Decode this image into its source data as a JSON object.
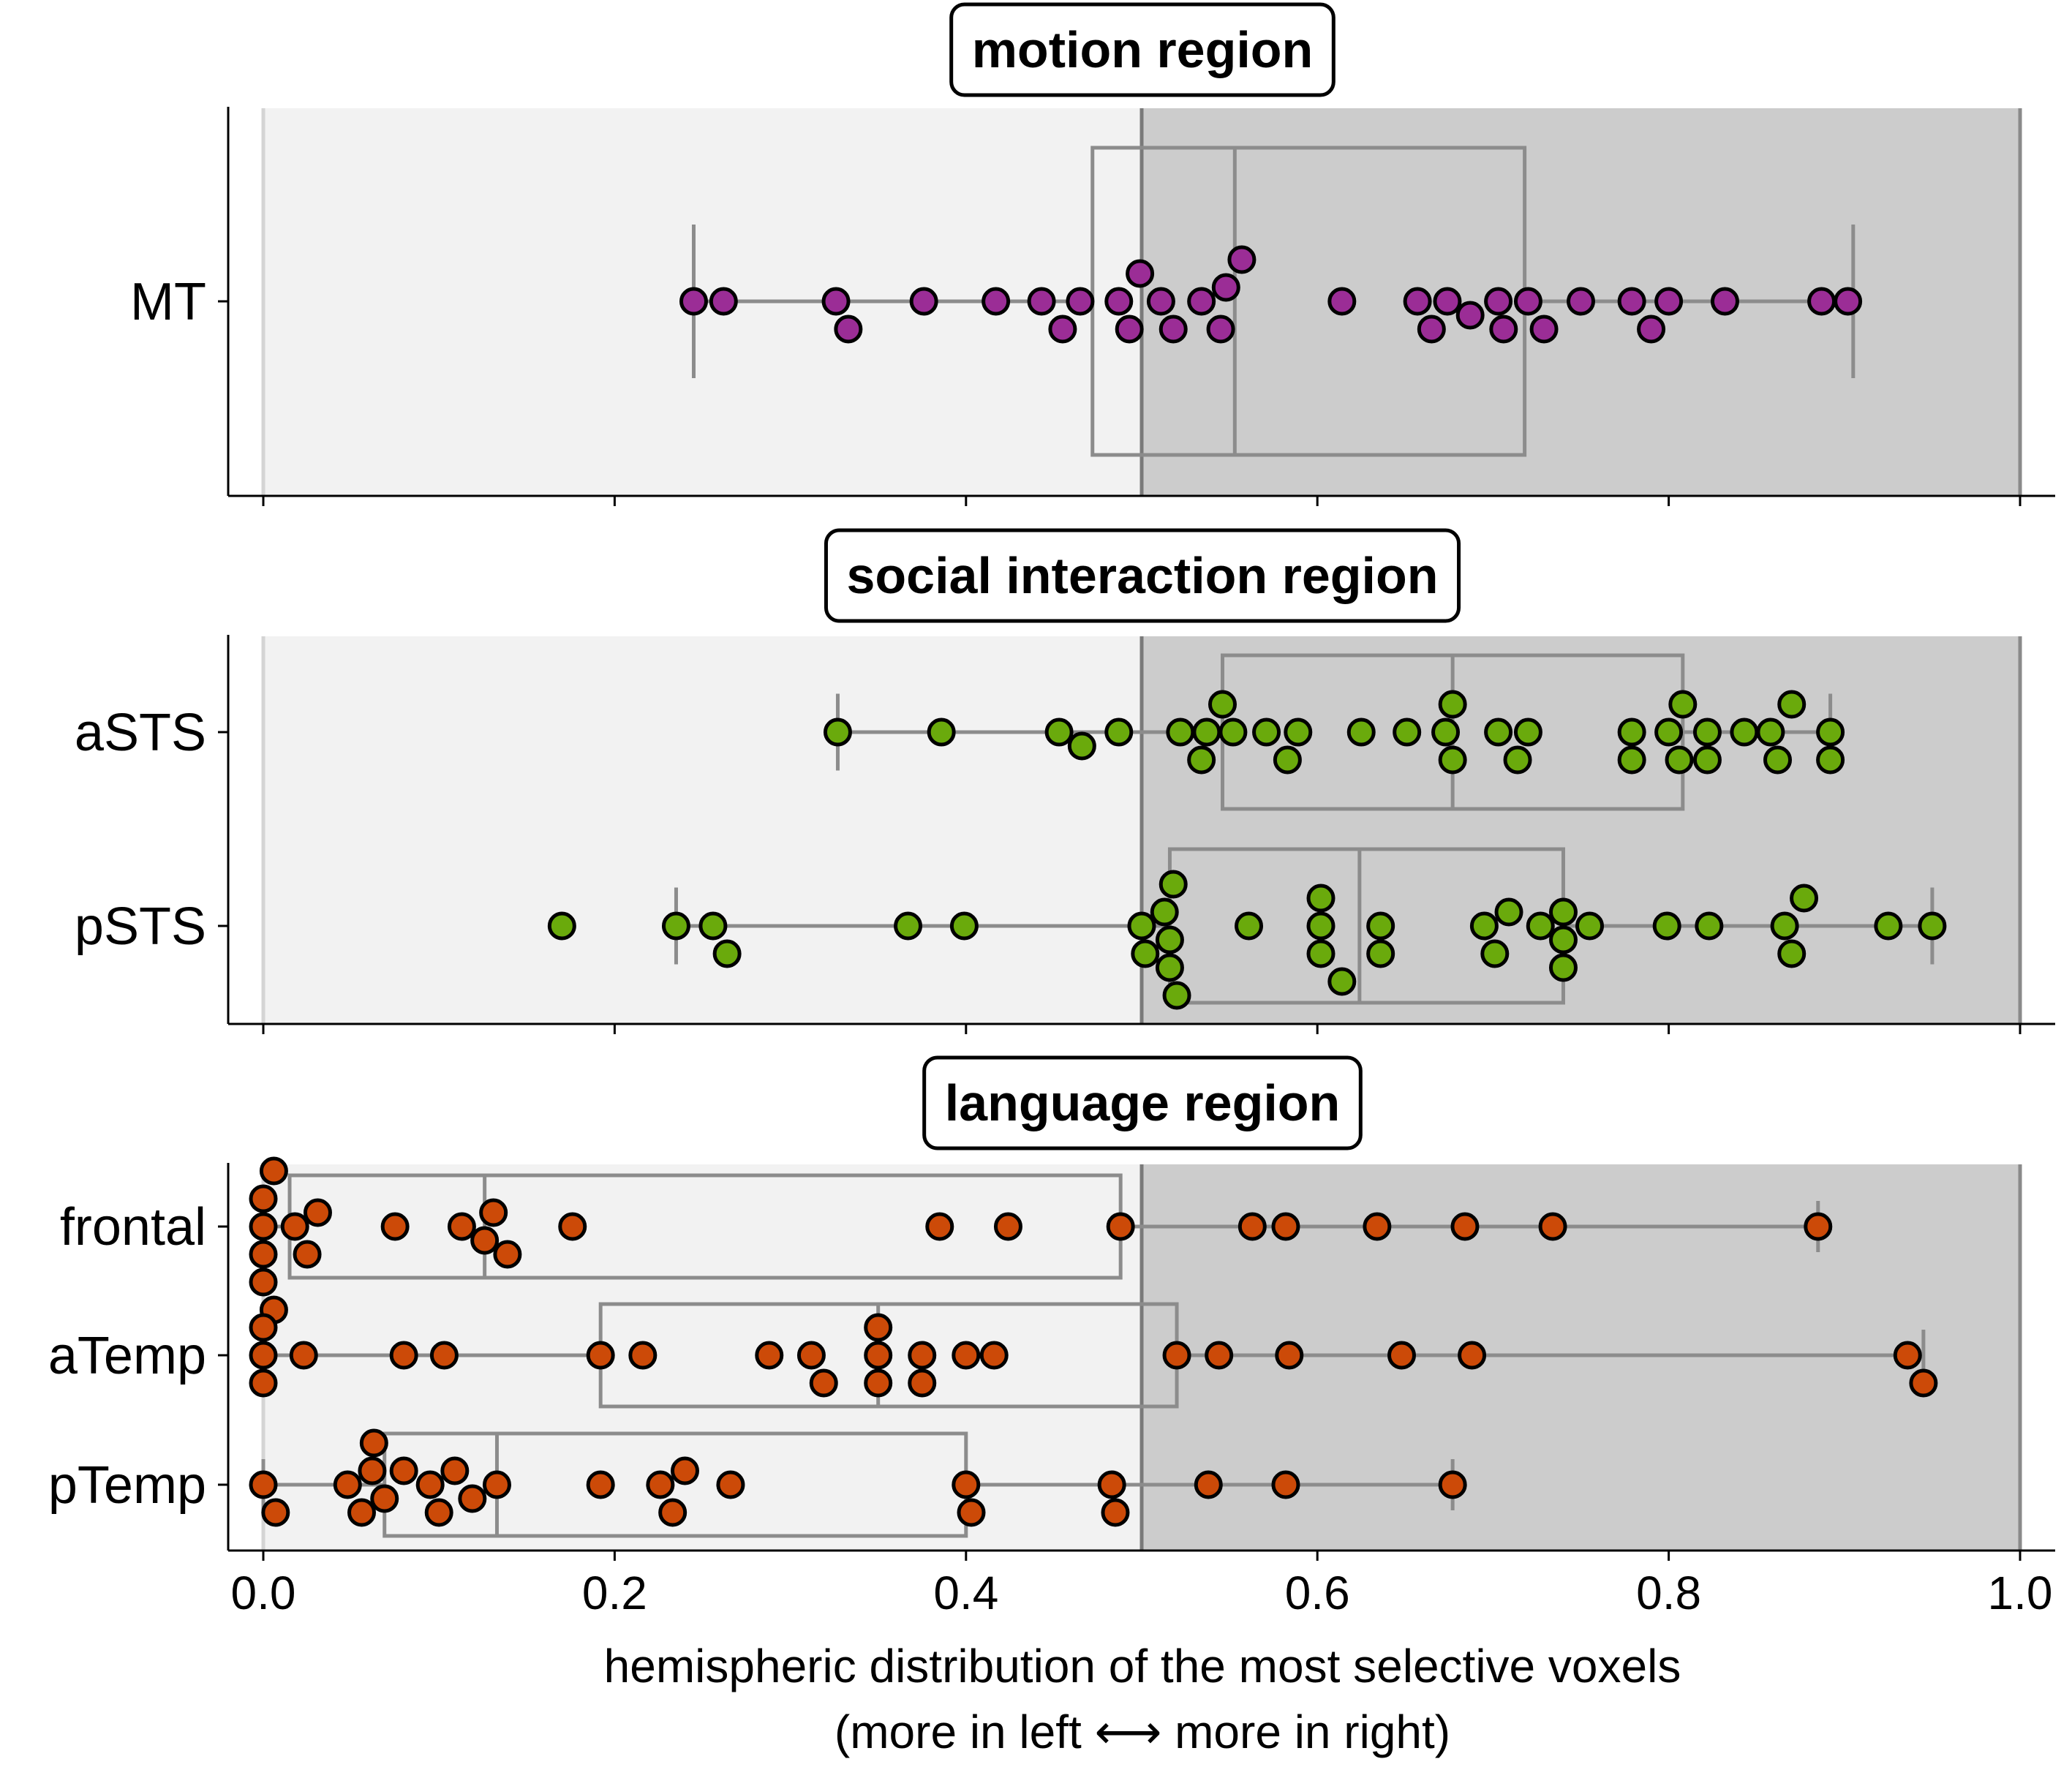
{
  "chart_data": {
    "type": "scatter",
    "subtype": "swarm-with-boxplot",
    "x_range": [
      0,
      1
    ],
    "x_ticks": [
      "0.0",
      "0.2",
      "0.4",
      "0.6",
      "0.8",
      "1.0"
    ],
    "xlabel_line1": "hemispheric distribution of the most selective voxels",
    "xlabel_line2": "(more in left ⟷ more in right)",
    "shading": {
      "left_color": "#f2f2f2",
      "right_color": "#cccccc",
      "split": 0.5
    },
    "panels": [
      {
        "title": "motion region",
        "color": "#9b2d96",
        "categories": [
          {
            "name": "MT",
            "box": {
              "whisker_low": 0.245,
              "q1": 0.472,
              "median": 0.553,
              "q3": 0.718,
              "whisker_high": 0.905
            },
            "values": [
              0.245,
              0.262,
              0.326,
              0.333,
              0.376,
              0.417,
              0.443,
              0.455,
              0.465,
              0.487,
              0.493,
              0.499,
              0.511,
              0.518,
              0.534,
              0.545,
              0.548,
              0.557,
              0.614,
              0.657,
              0.665,
              0.674,
              0.687,
              0.703,
              0.706,
              0.72,
              0.729,
              0.75,
              0.779,
              0.79,
              0.8,
              0.832,
              0.887,
              0.902
            ]
          }
        ]
      },
      {
        "title": "social interaction region",
        "color": "#6aaa0c",
        "categories": [
          {
            "name": "aSTS",
            "box": {
              "whisker_low": 0.327,
              "q1": 0.546,
              "median": 0.677,
              "q3": 0.808,
              "whisker_high": 0.892
            },
            "values": [
              0.327,
              0.386,
              0.453,
              0.466,
              0.487,
              0.522,
              0.534,
              0.537,
              0.546,
              0.552,
              0.571,
              0.583,
              0.589,
              0.625,
              0.651,
              0.673,
              0.677,
              0.677,
              0.703,
              0.714,
              0.72,
              0.779,
              0.779,
              0.8,
              0.806,
              0.808,
              0.822,
              0.822,
              0.843,
              0.858,
              0.862,
              0.87,
              0.892,
              0.892
            ]
          },
          {
            "name": "pSTS",
            "box": {
              "whisker_low": 0.235,
              "q1": 0.516,
              "median": 0.624,
              "q3": 0.74,
              "whisker_high": 0.95
            },
            "values": [
              0.17,
              0.235,
              0.256,
              0.264,
              0.367,
              0.399,
              0.5,
              0.502,
              0.513,
              0.516,
              0.516,
              0.518,
              0.52,
              0.561,
              0.602,
              0.602,
              0.602,
              0.614,
              0.636,
              0.636,
              0.695,
              0.701,
              0.709,
              0.727,
              0.74,
              0.74,
              0.74,
              0.755,
              0.799,
              0.823,
              0.866,
              0.87,
              0.877,
              0.925,
              0.95
            ]
          }
        ]
      },
      {
        "title": "language region",
        "color": "#cc4a08",
        "categories": [
          {
            "name": "frontal",
            "box": {
              "whisker_low": 0.0,
              "q1": 0.015,
              "median": 0.126,
              "q3": 0.488,
              "whisker_high": 0.885
            },
            "values": [
              0.0,
              0.0,
              0.0,
              0.0,
              0.006,
              0.006,
              0.018,
              0.025,
              0.031,
              0.075,
              0.113,
              0.126,
              0.131,
              0.139,
              0.176,
              0.385,
              0.424,
              0.488,
              0.563,
              0.582,
              0.634,
              0.684,
              0.734,
              0.885
            ]
          },
          {
            "name": "aTemp",
            "box": {
              "whisker_low": 0.0,
              "q1": 0.192,
              "median": 0.35,
              "q3": 0.52,
              "whisker_high": 0.945
            },
            "values": [
              0.0,
              0.0,
              0.0,
              0.023,
              0.08,
              0.103,
              0.192,
              0.216,
              0.288,
              0.312,
              0.319,
              0.35,
              0.35,
              0.35,
              0.375,
              0.375,
              0.4,
              0.416,
              0.52,
              0.544,
              0.584,
              0.648,
              0.688,
              0.936,
              0.945
            ]
          },
          {
            "name": "pTemp",
            "box": {
              "whisker_low": 0.0,
              "q1": 0.069,
              "median": 0.133,
              "q3": 0.4,
              "whisker_high": 0.677
            },
            "values": [
              0.0,
              0.007,
              0.048,
              0.056,
              0.062,
              0.063,
              0.069,
              0.08,
              0.095,
              0.1,
              0.109,
              0.119,
              0.133,
              0.192,
              0.226,
              0.233,
              0.24,
              0.266,
              0.4,
              0.403,
              0.483,
              0.485,
              0.538,
              0.582,
              0.677
            ]
          }
        ]
      }
    ]
  }
}
